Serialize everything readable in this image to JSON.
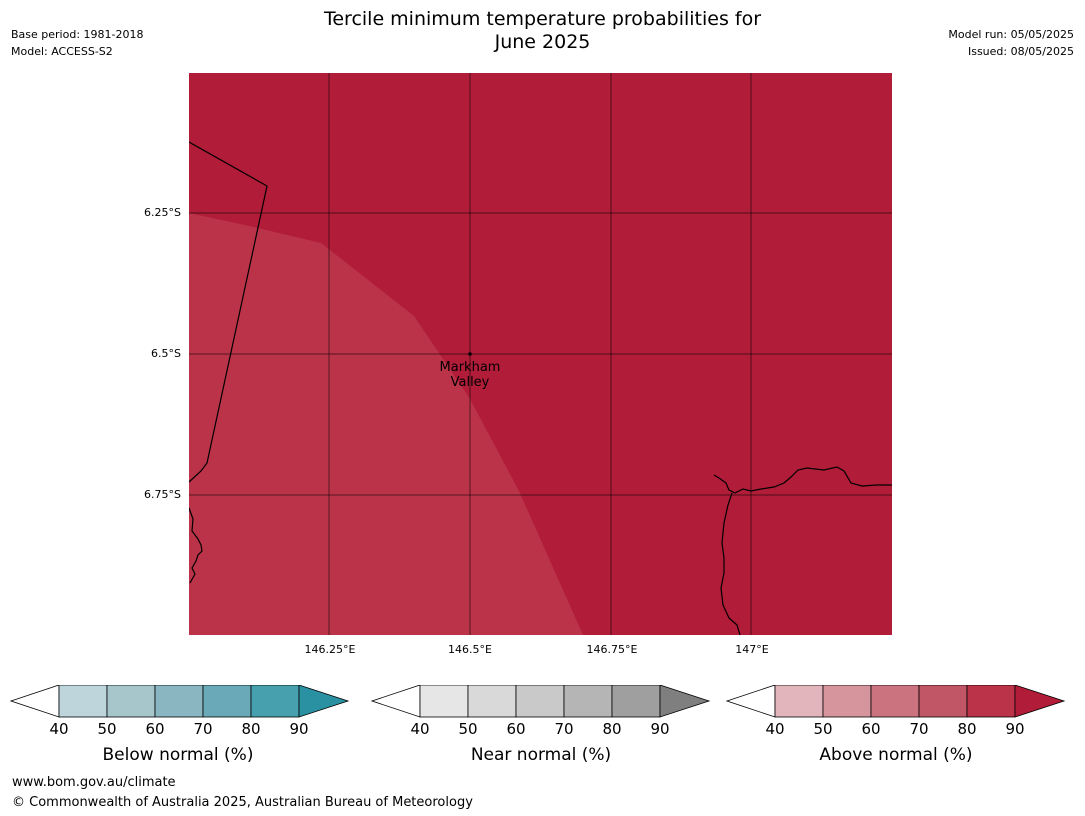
{
  "header": {
    "title_line1": "Tercile minimum temperature probabilities for",
    "title_line2": "June 2025",
    "base_period": "Base period: 1981-2018",
    "model": "Model: ACCESS-S2",
    "model_run": "Model run: 05/05/2025",
    "issued": "Issued: 08/05/2025"
  },
  "map": {
    "lat_labels": [
      "6.25°S",
      "6.5°S",
      "6.75°S"
    ],
    "lon_labels": [
      "146.25°E",
      "146.5°E",
      "146.75°E",
      "147°E"
    ],
    "place_line1": "Markham",
    "place_line2": "Valley",
    "colors": {
      "above_90": "#b11c38",
      "above_80": "#bb3349",
      "coastline": "#000000"
    }
  },
  "colorbars": [
    {
      "title": "Below normal (%)",
      "ticks": [
        "40",
        "50",
        "60",
        "70",
        "80",
        "90"
      ],
      "colors": [
        "#ffffff",
        "#bfd5dc",
        "#a6c6cc",
        "#89b6c1",
        "#6aa9b8",
        "#46a0ae",
        "#2a91a2"
      ]
    },
    {
      "title": "Near normal (%)",
      "ticks": [
        "40",
        "50",
        "60",
        "70",
        "80",
        "90"
      ],
      "colors": [
        "#ffffff",
        "#e6e6e6",
        "#d9d9d9",
        "#c9c9c9",
        "#b5b5b5",
        "#9f9f9f",
        "#7f7f7f"
      ]
    },
    {
      "title": "Above normal (%)",
      "ticks": [
        "40",
        "50",
        "60",
        "70",
        "80",
        "90"
      ],
      "colors": [
        "#ffffff",
        "#e1b5bb",
        "#d6959d",
        "#cb7480",
        "#c05666",
        "#bb3349",
        "#b11c38"
      ]
    }
  ],
  "footer": {
    "url": "www.bom.gov.au/climate",
    "copyright": "© Commonwealth of Australia 2025, Australian Bureau of Meteorology"
  }
}
